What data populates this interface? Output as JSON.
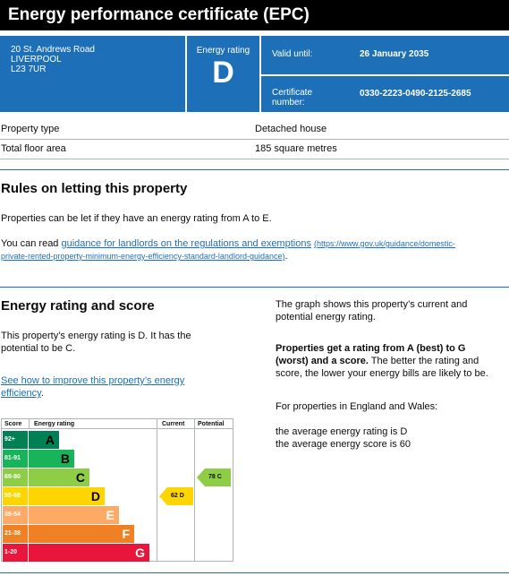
{
  "title": "Energy performance certificate (EPC)",
  "address": {
    "line1": "20 St. Andrews Road",
    "line2": "LIVERPOOL",
    "line3": "L23 7UR"
  },
  "rating_box": {
    "label": "Energy rating",
    "value": "D"
  },
  "valid": {
    "label": "Valid until:",
    "value": "26 January 2035"
  },
  "certificate": {
    "label": "Certificate number:",
    "value": "0330-2223-0490-2125-2685"
  },
  "property": [
    {
      "label": "Property type",
      "value": "Detached house"
    },
    {
      "label": "Total floor area",
      "value": "185 square metres"
    }
  ],
  "letting": {
    "heading": "Rules on letting this property",
    "para1": "Properties can be let if they have an energy rating from A to E.",
    "para2_prefix": "You can read ",
    "link_text": "guidance for landlords on the regulations and exemptions",
    "link_url_a": "(https://www.gov.uk/guidance/domestic-",
    "link_url_b": "private-rented-property-minimum-energy-efficiency-standard-landlord-guidance)",
    "para2_suffix": "."
  },
  "score": {
    "heading": "Energy rating and score",
    "para1_a": "This property’s energy rating is D. It has the",
    "para1_b": "potential to be C.",
    "link_a": "See how to improve this property’s energy",
    "link_b": "efficiency",
    "link_suffix": "."
  },
  "right": {
    "p1_a": "The graph shows this property’s current and",
    "p1_b": "potential energy rating.",
    "p2_bold_a": "Properties get a rating from A (best) to G",
    "p2_bold_b": "(worst) and a score.",
    "p2_rest_a": " The better the rating and",
    "p2_rest_b": "score, the lower your energy bills are likely to be.",
    "p3": "For properties in England and Wales:",
    "p4": "the average energy rating is D",
    "p5": "the average energy score is 60"
  },
  "chart_data": {
    "type": "table",
    "headers": {
      "score": "Score",
      "rating": "Energy rating",
      "current": "Current",
      "potential": "Potential"
    },
    "bands": [
      {
        "range": "92+",
        "letter": "A",
        "color": "#008054"
      },
      {
        "range": "81-91",
        "letter": "B",
        "color": "#19b459"
      },
      {
        "range": "69-80",
        "letter": "C",
        "color": "#8dce46"
      },
      {
        "range": "55-68",
        "letter": "D",
        "color": "#ffd500"
      },
      {
        "range": "39-54",
        "letter": "E",
        "color": "#fcaa65"
      },
      {
        "range": "21-38",
        "letter": "F",
        "color": "#ef8023"
      },
      {
        "range": "1-20",
        "letter": "G",
        "color": "#e9153b"
      }
    ],
    "current": {
      "score": 62,
      "letter": "D",
      "label": "62 D",
      "band_index": 3,
      "color": "#ffd500"
    },
    "potential": {
      "score": 78,
      "letter": "C",
      "label": "78 C",
      "band_index": 2,
      "color": "#8dce46"
    }
  }
}
